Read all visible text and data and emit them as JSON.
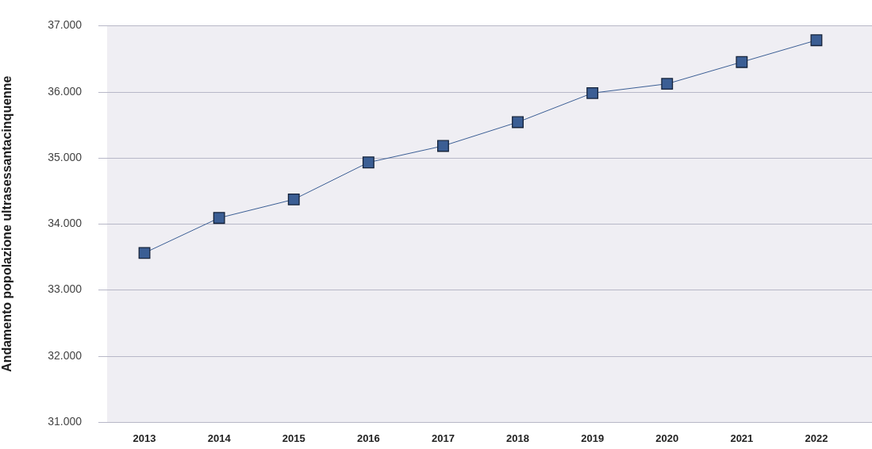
{
  "chart_data": {
    "type": "line",
    "ylabel": "Andamento popolazione ultrasessantacinquenne",
    "categories": [
      "2013",
      "2014",
      "2015",
      "2016",
      "2017",
      "2018",
      "2019",
      "2020",
      "2021",
      "2022"
    ],
    "series": [
      {
        "color": "#3b5e94",
        "values": [
          33560,
          34090,
          34370,
          34930,
          35180,
          35540,
          35980,
          36120,
          36450,
          36780
        ]
      }
    ],
    "ylim": [
      31000,
      37000
    ],
    "yticks": [
      {
        "value": 31000,
        "label": "31.000"
      },
      {
        "value": 32000,
        "label": "32.000"
      },
      {
        "value": 33000,
        "label": "33.000"
      },
      {
        "value": 34000,
        "label": "34.000"
      },
      {
        "value": 35000,
        "label": "35.000"
      },
      {
        "value": 36000,
        "label": "36.000"
      },
      {
        "value": 37000,
        "label": "37.000"
      }
    ],
    "grid": "y",
    "marker": "square",
    "line_style": "solid"
  }
}
